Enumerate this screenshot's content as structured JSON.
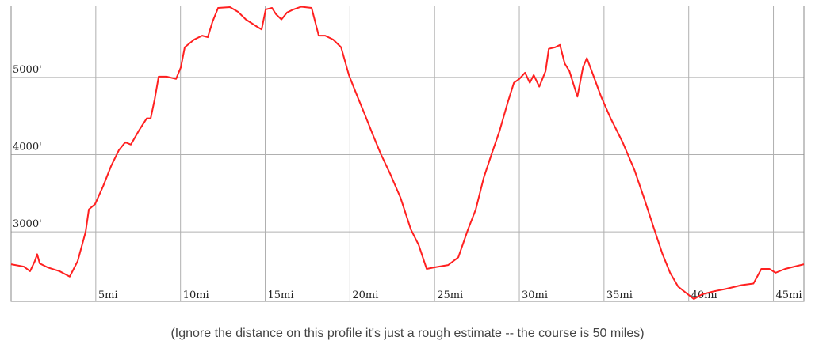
{
  "chart_data": {
    "type": "line",
    "caption": "(Ignore the distance on this profile it's just a rough estimate -- the course is 50 miles)",
    "color": "#ff2020",
    "grid": true,
    "xlim": [
      0,
      46.8
    ],
    "ylim": [
      2100,
      5920
    ],
    "xticks": [
      {
        "value": 5,
        "label": "5mi"
      },
      {
        "value": 10,
        "label": "10mi"
      },
      {
        "value": 15,
        "label": "15mi"
      },
      {
        "value": 20,
        "label": "20mi"
      },
      {
        "value": 25,
        "label": "25mi"
      },
      {
        "value": 30,
        "label": "30mi"
      },
      {
        "value": 35,
        "label": "35mi"
      },
      {
        "value": 40,
        "label": "40mi"
      },
      {
        "value": 45,
        "label": "45mi"
      }
    ],
    "yticks": [
      {
        "value": 3000,
        "label": "3000'"
      },
      {
        "value": 4000,
        "label": "4000'"
      },
      {
        "value": 5000,
        "label": "5000'"
      }
    ],
    "x": [
      0,
      0.75,
      1.12,
      1.4,
      1.54,
      1.69,
      2.15,
      2.86,
      3.46,
      3.93,
      4.4,
      4.59,
      4.96,
      5.43,
      5.9,
      6.37,
      6.74,
      7.07,
      7.54,
      8.01,
      8.24,
      8.48,
      8.71,
      9.18,
      9.74,
      10.02,
      10.25,
      10.81,
      11.28,
      11.61,
      11.89,
      12.22,
      12.92,
      13.39,
      13.86,
      14.56,
      14.79,
      15.03,
      15.4,
      15.63,
      15.96,
      16.29,
      16.67,
      17.13,
      17.74,
      18.16,
      18.54,
      19.01,
      19.48,
      19.94,
      20.41,
      20.88,
      21.35,
      21.82,
      22.38,
      22.99,
      23.6,
      24.06,
      24.53,
      25.0,
      25.8,
      26.4,
      26.97,
      27.43,
      27.9,
      28.37,
      28.84,
      29.31,
      29.68,
      30.0,
      30.34,
      30.62,
      30.85,
      31.18,
      31.55,
      31.74,
      32.12,
      32.4,
      32.68,
      32.96,
      33.43,
      33.76,
      33.99,
      34.36,
      34.83,
      35.39,
      36.1,
      36.8,
      37.36,
      37.97,
      38.44,
      38.9,
      39.38,
      39.84,
      40.31,
      40.78,
      41.48,
      42.18,
      43.12,
      43.82,
      44.29,
      44.76,
      45.13,
      45.69,
      46.8
    ],
    "values": [
      2580,
      2550,
      2490,
      2620,
      2710,
      2590,
      2540,
      2490,
      2420,
      2620,
      3000,
      3290,
      3360,
      3590,
      3850,
      4060,
      4160,
      4130,
      4310,
      4470,
      4470,
      4720,
      5010,
      5010,
      4980,
      5130,
      5390,
      5490,
      5540,
      5520,
      5720,
      5900,
      5910,
      5850,
      5750,
      5650,
      5620,
      5880,
      5900,
      5820,
      5750,
      5840,
      5880,
      5915,
      5900,
      5540,
      5540,
      5490,
      5390,
      5030,
      4770,
      4520,
      4260,
      4010,
      3750,
      3440,
      3030,
      2830,
      2520,
      2540,
      2570,
      2670,
      3030,
      3290,
      3700,
      4010,
      4310,
      4670,
      4930,
      4980,
      5060,
      4930,
      5030,
      4880,
      5080,
      5370,
      5390,
      5420,
      5180,
      5080,
      4750,
      5130,
      5250,
      5030,
      4750,
      4470,
      4160,
      3800,
      3440,
      3030,
      2720,
      2470,
      2290,
      2210,
      2130,
      2190,
      2230,
      2260,
      2310,
      2330,
      2520,
      2520,
      2470,
      2520,
      2580
    ]
  }
}
